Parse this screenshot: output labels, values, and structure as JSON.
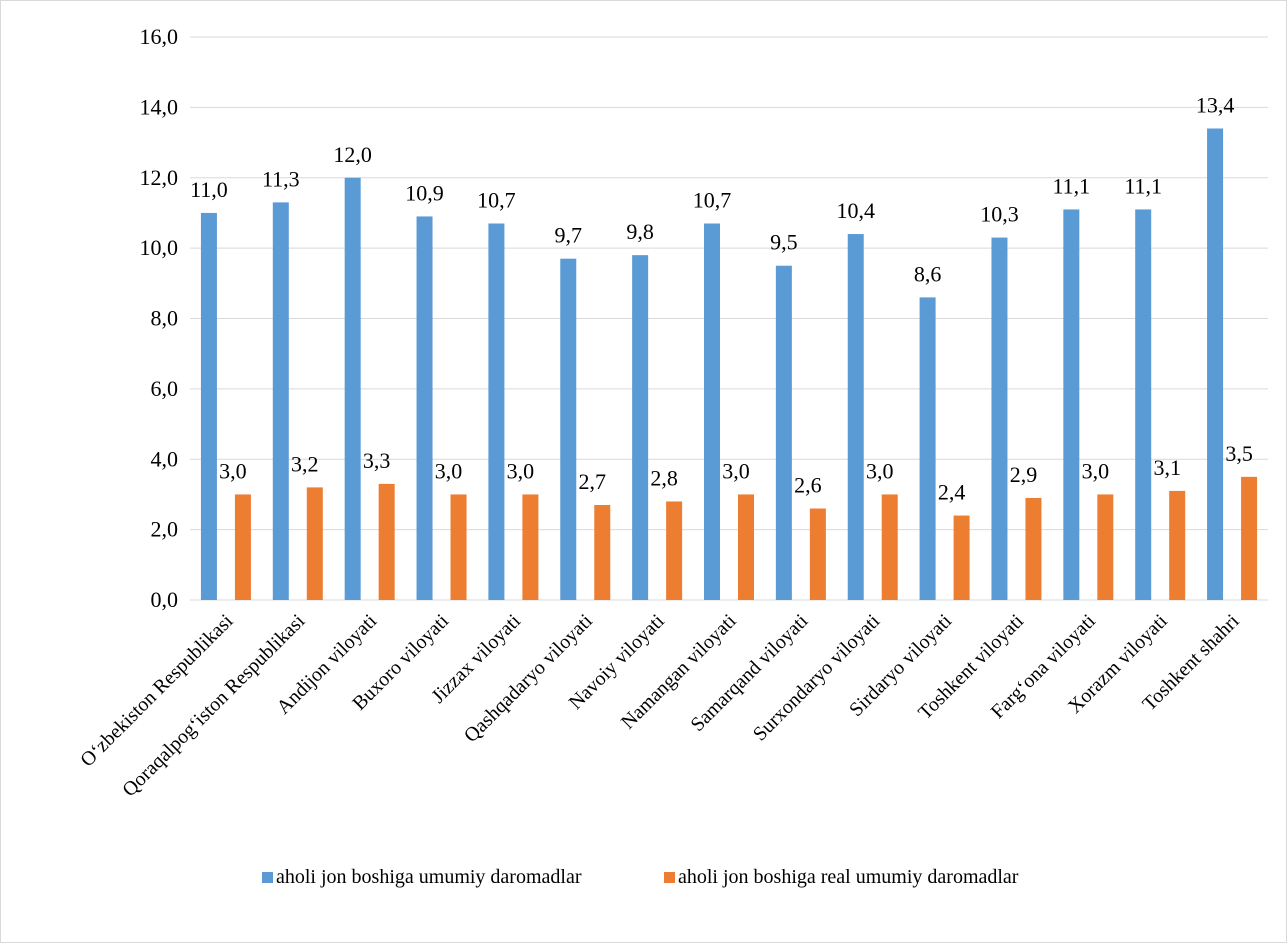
{
  "chart_data": {
    "type": "bar",
    "title": "",
    "xlabel": "",
    "ylabel": "",
    "ylim": [
      0,
      16
    ],
    "yticks": [
      "0,0",
      "2,0",
      "4,0",
      "6,0",
      "8,0",
      "10,0",
      "12,0",
      "14,0",
      "16,0"
    ],
    "grid": true,
    "legend_position": "bottom",
    "categories": [
      "O‘zbekiston Respublikasi",
      "Qoraqalpog‘iston Respublikasi",
      "Andijon viloyati",
      "Buxoro viloyati",
      "Jizzax viloyati",
      "Qashqadaryo viloyati",
      "Navoiy viloyati",
      "Namangan viloyati",
      "Samarqand viloyati",
      "Surxondaryo viloyati",
      "Sirdaryo viloyati",
      "Toshkent viloyati",
      "Farg‘ona  viloyati",
      "Xorazm viloyati",
      "Toshkent shahri"
    ],
    "series": [
      {
        "name": "aholi jon boshiga umumiy daromadlar",
        "color": "#5b9bd5",
        "values": [
          11.0,
          11.3,
          12.0,
          10.9,
          10.7,
          9.7,
          9.8,
          10.7,
          9.5,
          10.4,
          8.6,
          10.3,
          11.1,
          11.1,
          13.4
        ],
        "labels": [
          "11,0",
          "11,3",
          "12,0",
          "10,9",
          "10,7",
          "9,7",
          "9,8",
          "10,7",
          "9,5",
          "10,4",
          "8,6",
          "10,3",
          "11,1",
          "11,1",
          "13,4"
        ]
      },
      {
        "name": "aholi jon boshiga real umumiy daromadlar",
        "color": "#ed7d31",
        "values": [
          3.0,
          3.2,
          3.3,
          3.0,
          3.0,
          2.7,
          2.8,
          3.0,
          2.6,
          3.0,
          2.4,
          2.9,
          3.0,
          3.1,
          3.5
        ],
        "labels": [
          "3,0",
          "3,2",
          "3,3",
          "3,0",
          "3,0",
          "2,7",
          "2,8",
          "3,0",
          "2,6",
          "3,0",
          "2,4",
          "2,9",
          "3,0",
          "3,1",
          "3,5"
        ]
      }
    ]
  }
}
